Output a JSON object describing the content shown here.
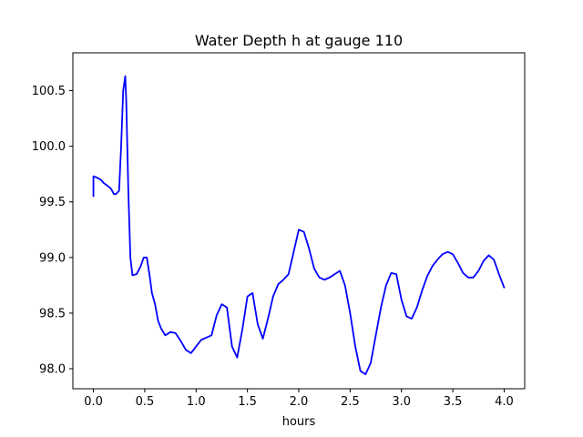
{
  "chart_data": {
    "type": "line",
    "title": "Water Depth h at gauge 110",
    "xlabel": "hours",
    "ylabel": "",
    "xlim": [
      -0.2,
      4.2
    ],
    "ylim": [
      97.82,
      100.84
    ],
    "xticks": [
      0.0,
      0.5,
      1.0,
      1.5,
      2.0,
      2.5,
      3.0,
      3.5,
      4.0
    ],
    "xtick_labels": [
      "0.0",
      "0.5",
      "1.0",
      "1.5",
      "2.0",
      "2.5",
      "3.0",
      "3.5",
      "4.0"
    ],
    "yticks": [
      98.0,
      98.5,
      99.0,
      99.5,
      100.0,
      100.5
    ],
    "ytick_labels": [
      "98.0",
      "98.5",
      "99.0",
      "99.5",
      "100.0",
      "100.5"
    ],
    "grid": false,
    "series": [
      {
        "color": "#0000ff",
        "x": [
          0.0,
          0.0,
          0.03,
          0.07,
          0.1,
          0.13,
          0.17,
          0.2,
          0.22,
          0.25,
          0.27,
          0.29,
          0.31,
          0.32,
          0.34,
          0.36,
          0.38,
          0.42,
          0.46,
          0.49,
          0.52,
          0.55,
          0.57,
          0.6,
          0.63,
          0.66,
          0.7,
          0.75,
          0.8,
          0.85,
          0.9,
          0.95,
          1.0,
          1.05,
          1.1,
          1.15,
          1.2,
          1.25,
          1.3,
          1.35,
          1.4,
          1.45,
          1.5,
          1.55,
          1.6,
          1.65,
          1.7,
          1.75,
          1.8,
          1.85,
          1.9,
          1.95,
          2.0,
          2.05,
          2.1,
          2.15,
          2.2,
          2.25,
          2.3,
          2.35,
          2.4,
          2.45,
          2.5,
          2.55,
          2.6,
          2.65,
          2.7,
          2.75,
          2.8,
          2.85,
          2.9,
          2.95,
          3.0,
          3.05,
          3.1,
          3.15,
          3.2,
          3.25,
          3.3,
          3.35,
          3.4,
          3.45,
          3.5,
          3.55,
          3.6,
          3.65,
          3.7,
          3.75,
          3.8,
          3.85,
          3.9,
          3.95,
          4.0
        ],
        "y": [
          99.55,
          99.73,
          99.72,
          99.7,
          99.67,
          99.65,
          99.62,
          99.57,
          99.57,
          99.6,
          100.0,
          100.5,
          100.63,
          100.4,
          99.6,
          99.0,
          98.84,
          98.85,
          98.92,
          99.0,
          99.0,
          98.82,
          98.68,
          98.58,
          98.43,
          98.36,
          98.3,
          98.33,
          98.32,
          98.25,
          98.17,
          98.14,
          98.2,
          98.26,
          98.28,
          98.3,
          98.48,
          98.58,
          98.55,
          98.2,
          98.1,
          98.35,
          98.65,
          98.68,
          98.4,
          98.27,
          98.45,
          98.65,
          98.76,
          98.8,
          98.85,
          99.05,
          99.25,
          99.23,
          99.08,
          98.9,
          98.82,
          98.8,
          98.82,
          98.85,
          98.88,
          98.75,
          98.5,
          98.2,
          97.98,
          97.95,
          98.05,
          98.3,
          98.55,
          98.75,
          98.86,
          98.85,
          98.62,
          98.47,
          98.45,
          98.55,
          98.7,
          98.83,
          98.92,
          98.98,
          99.03,
          99.05,
          99.03,
          98.95,
          98.86,
          98.82,
          98.82,
          98.88,
          98.97,
          99.02,
          98.98,
          98.85,
          98.73
        ]
      }
    ]
  }
}
